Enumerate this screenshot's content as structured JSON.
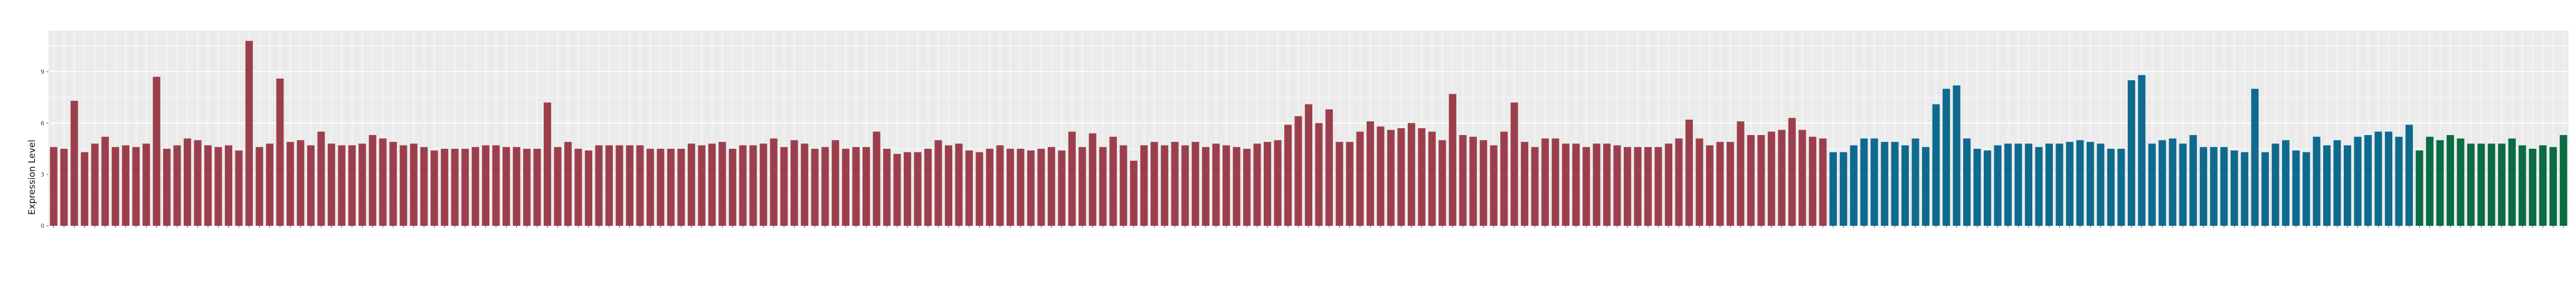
{
  "chart_data": {
    "type": "bar",
    "title": "",
    "xlabel": "",
    "ylabel": "Expression Level",
    "ylim": [
      0,
      11.4
    ],
    "yticks": [
      0,
      3,
      6,
      9
    ],
    "grid": true,
    "legend": "none",
    "colors": {
      "red": "#9C3F4C",
      "blue": "#0E6A8E",
      "green": "#0B6B43",
      "panel": "#EBEBEB",
      "grid": "#FFFFFF"
    },
    "groups": [
      {
        "color": "red",
        "values": [
          4.6,
          4.5,
          7.3,
          4.3,
          4.8,
          5.2,
          4.6,
          4.7,
          4.6,
          4.8,
          8.7,
          4.5,
          4.7,
          5.1,
          5.0,
          4.7,
          4.6,
          4.7,
          4.4,
          10.8,
          4.6,
          4.8,
          8.6,
          4.9,
          5.0,
          4.7,
          5.5,
          4.8,
          4.7,
          4.7,
          4.8,
          5.3,
          5.1,
          4.9,
          4.7,
          4.8,
          4.6,
          4.4,
          4.5,
          4.5,
          4.5,
          4.6,
          4.7,
          4.7,
          4.6,
          4.6,
          4.5,
          4.5,
          7.2,
          4.6,
          4.9,
          4.5,
          4.4,
          4.7,
          4.7,
          4.7,
          4.7,
          4.7,
          4.5,
          4.5,
          4.5,
          4.5,
          4.8,
          4.7,
          4.8,
          4.9,
          4.5,
          4.7,
          4.7,
          4.8,
          5.1,
          4.6,
          5.0,
          4.8,
          4.5,
          4.6,
          5.0,
          4.5,
          4.6,
          4.6,
          5.5,
          4.5,
          4.2,
          4.3,
          4.3,
          4.5,
          5.0,
          4.7,
          4.8,
          4.4,
          4.3,
          4.5,
          4.7,
          4.5,
          4.5,
          4.4,
          4.5,
          4.6,
          4.4,
          5.5,
          4.6,
          5.4,
          4.6,
          5.2,
          4.7,
          3.8,
          4.7,
          4.9,
          4.7,
          4.9,
          4.7,
          4.9,
          4.6,
          4.8,
          4.7,
          4.6,
          4.5,
          4.8,
          4.9,
          5.0,
          5.9,
          6.4,
          7.1,
          6.0,
          6.8,
          4.9,
          4.9,
          5.5,
          6.1,
          5.8,
          5.6,
          5.7,
          6.0,
          5.7,
          5.5,
          5.0,
          7.7,
          5.3,
          5.2,
          5.0,
          4.7,
          5.5,
          7.2,
          4.9,
          4.6,
          5.1,
          5.1,
          4.8,
          4.8,
          4.6,
          4.8,
          4.8,
          4.7,
          4.6,
          4.6,
          4.6,
          4.6,
          4.8,
          5.1,
          6.2,
          5.1,
          4.7,
          4.9,
          4.9,
          6.1,
          5.3,
          5.3,
          5.5,
          5.6,
          6.3,
          5.6,
          5.2,
          5.1
        ]
      },
      {
        "color": "blue",
        "values": [
          4.3,
          4.3,
          4.7,
          5.1,
          5.1,
          4.9,
          4.9,
          4.7,
          5.1,
          4.6,
          7.1,
          8.0,
          8.2,
          5.1,
          4.5,
          4.4,
          4.7,
          4.8,
          4.8,
          4.8,
          4.6,
          4.8,
          4.8,
          4.9,
          5.0,
          4.9,
          4.8,
          4.5,
          4.5,
          8.5,
          8.8,
          4.8,
          5.0,
          5.1,
          4.8,
          5.3,
          4.6,
          4.6,
          4.6,
          4.4,
          4.3,
          8.0,
          4.3,
          4.8,
          5.0,
          4.4,
          4.3,
          5.2,
          4.7,
          5.0,
          4.7,
          5.2,
          5.3,
          5.5,
          5.5,
          5.2,
          5.9
        ]
      },
      {
        "color": "green",
        "values": [
          4.4,
          5.2,
          5.0,
          5.3,
          5.1,
          4.8,
          4.8,
          4.8,
          4.8,
          5.1,
          4.7,
          4.5,
          4.7,
          4.6,
          5.3
        ]
      }
    ]
  }
}
